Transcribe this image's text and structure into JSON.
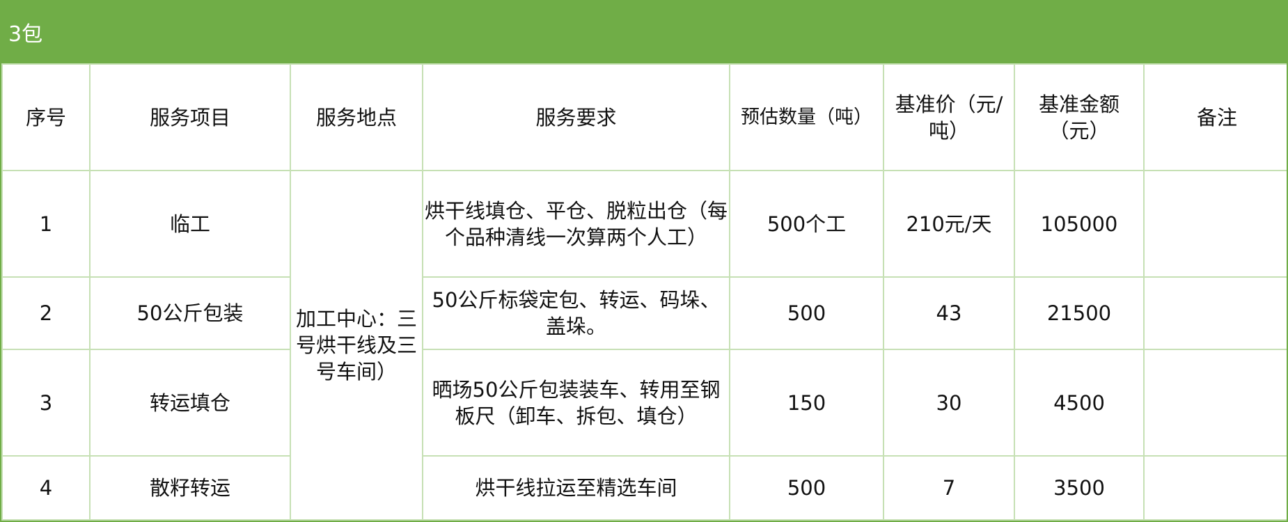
{
  "title": "3包",
  "theme": {
    "header_color": "#70ad47",
    "grid_color": "#c6e0b4"
  },
  "columns": [
    "序号",
    "服务项目",
    "服务地点",
    "服务要求",
    "预估数量（吨）",
    "基准价（元/吨）",
    "基准金额（元）",
    "备注"
  ],
  "location": "加工中心：三号烘干线及三号车间）",
  "rows": [
    {
      "no": "1",
      "item": "临工",
      "requirement": "烘干线填仓、平仓、脱粒出仓（每个品种清线一次算两个人工）",
      "quantity": "500个工",
      "price": "210元/天",
      "amount": "105000",
      "note": ""
    },
    {
      "no": "2",
      "item": "50公斤包装",
      "requirement": "50公斤标袋定包、转运、码垛、盖垛。",
      "quantity": "500",
      "price": "43",
      "amount": "21500",
      "note": ""
    },
    {
      "no": "3",
      "item": "转运填仓",
      "requirement": "晒场50公斤包装装车、转用至钢板尺（卸车、拆包、填仓）",
      "quantity": "150",
      "price": "30",
      "amount": "4500",
      "note": ""
    },
    {
      "no": "4",
      "item": "散籽转运",
      "requirement": "烘干线拉运至精选车间",
      "quantity": "500",
      "price": "7",
      "amount": "3500",
      "note": ""
    }
  ]
}
